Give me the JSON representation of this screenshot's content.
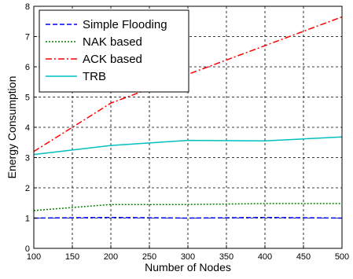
{
  "chart_data": {
    "type": "line",
    "xlabel": "Number of Nodes",
    "ylabel": "Energy Consumption",
    "xlim": [
      100,
      500
    ],
    "ylim": [
      0,
      8
    ],
    "xticks": [
      100,
      150,
      200,
      250,
      300,
      350,
      400,
      450,
      500
    ],
    "yticks": [
      0,
      1,
      2,
      3,
      4,
      5,
      6,
      7,
      8
    ],
    "grid": true,
    "legend_position": "top-left",
    "series": [
      {
        "name": "Simple Flooding",
        "color": "#0000ff",
        "style": "dashed",
        "x": [
          100,
          200,
          300,
          400,
          500
        ],
        "values": [
          1.0,
          1.02,
          1.0,
          1.02,
          1.0
        ]
      },
      {
        "name": "NAK based",
        "color": "#008000",
        "style": "dotted",
        "x": [
          100,
          200,
          300,
          400,
          500
        ],
        "values": [
          1.25,
          1.45,
          1.45,
          1.48,
          1.48
        ]
      },
      {
        "name": "ACK based",
        "color": "#ff0000",
        "style": "dashdot",
        "x": [
          100,
          200,
          300,
          400,
          500
        ],
        "values": [
          3.2,
          4.8,
          5.75,
          6.7,
          7.65
        ]
      },
      {
        "name": "TRB",
        "color": "#00bfbf",
        "style": "solid",
        "x": [
          100,
          200,
          300,
          400,
          500
        ],
        "values": [
          3.1,
          3.4,
          3.57,
          3.55,
          3.68
        ]
      }
    ]
  }
}
